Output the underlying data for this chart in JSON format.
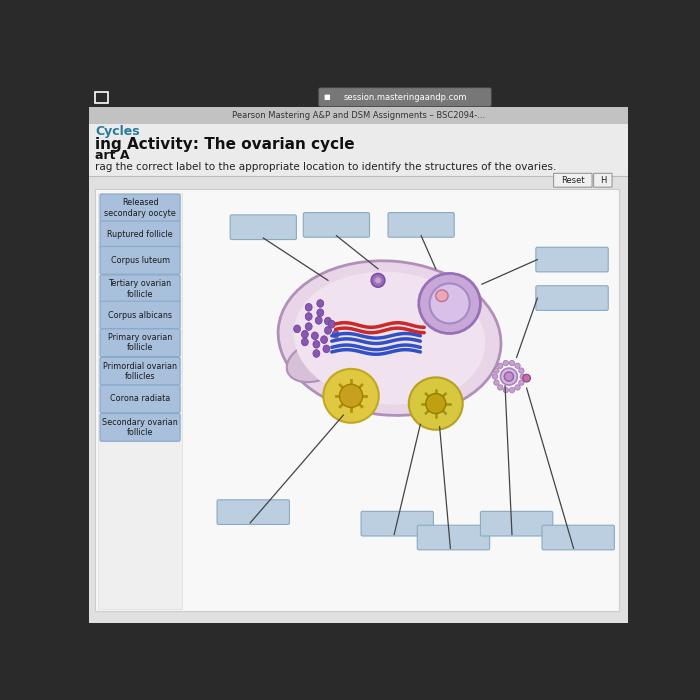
{
  "bg_outer": "#2a2a2a",
  "bg_tab_bar": "#c8c8c8",
  "bg_page": "#e2e2e2",
  "bg_content": "#f5f5f5",
  "browser_url": "session.masteringaandp.com",
  "tab_text": "Pearson Mastering A&P and DSM Assignments – BSC2094-...",
  "heading_cycles": "Cycles",
  "heading_activity": "ing Activity: The ovarian cycle",
  "heading_part": "art A",
  "instruction": "rag the correct label to the appropriate location to identify the structures of the ovaries.",
  "label_items": [
    "Released\nsecondary oocyte",
    "Ruptured follicle",
    "Corpus luteum",
    "Tertiary ovarian\nfollicle",
    "Corpus albicans",
    "Primary ovarian\nfollicle",
    "Primordial ovarian\nfollicles",
    "Corona radiata",
    "Secondary ovarian\nfollicle"
  ],
  "label_box_color": "#a8c0dc",
  "label_box_edge": "#88a8c8",
  "label_text_color": "#1a1a1a",
  "empty_box_color": "#bccfe0",
  "empty_box_edge": "#8aaac0",
  "heading_color": "#2a7a9a",
  "heading_activity_color": "#111111"
}
